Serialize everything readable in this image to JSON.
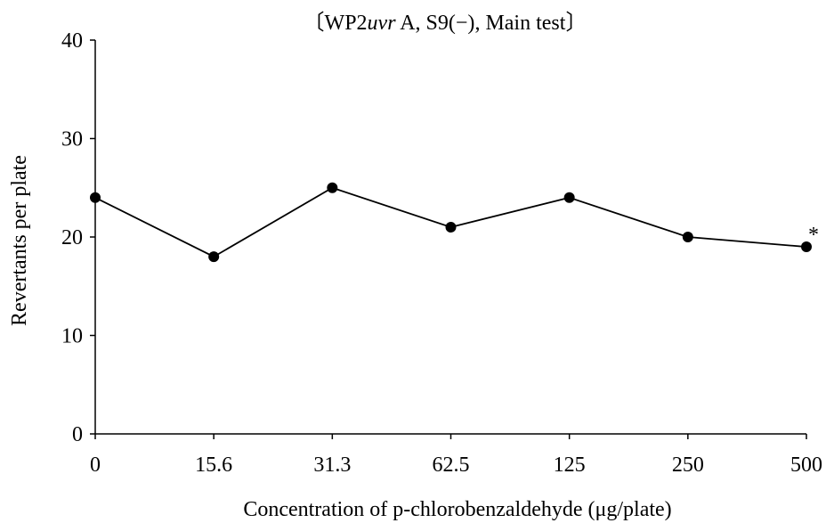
{
  "chart_data": {
    "type": "line",
    "title": {
      "open_bracket": "〔",
      "strain_prefix": "WP2",
      "strain_italic": "uvr",
      "strain_suffix": " A, S9",
      "condition": "(−)",
      "rest": ", Main test",
      "close_bracket": "〕"
    },
    "xlabel": "Concentration of p-chlorobenzaldehyde (μg/plate)",
    "ylabel": "Revertants per plate",
    "categories": [
      "0",
      "15.6",
      "31.3",
      "62.5",
      "125",
      "250",
      "500"
    ],
    "values": [
      24,
      18,
      25,
      21,
      24,
      20,
      19
    ],
    "ylim": [
      0,
      40
    ],
    "yticks": [
      "0",
      "10",
      "20",
      "30",
      "40"
    ],
    "annotations": [
      {
        "category": "500",
        "text": "*"
      }
    ],
    "grid": false,
    "colors": {
      "line": "#000000",
      "marker": "#000000",
      "axis": "#000000"
    }
  }
}
